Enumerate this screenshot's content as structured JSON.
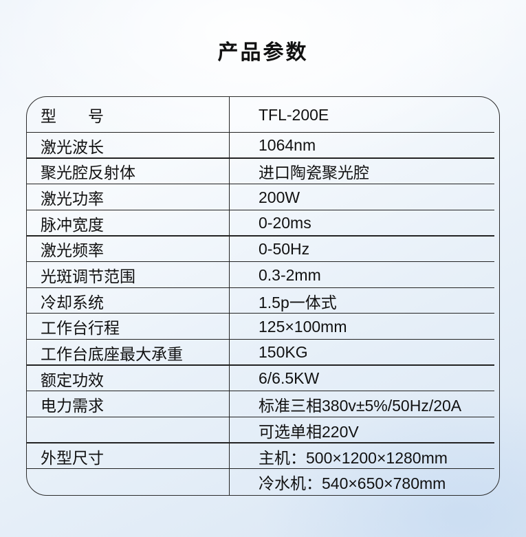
{
  "page": {
    "title": "产品参数"
  },
  "table": {
    "rows": [
      {
        "label": "型　　号",
        "value": "TFL-200E"
      },
      {
        "label": "激光波长",
        "value": "1064nm"
      },
      {
        "label": "聚光腔反射体",
        "value": "进口陶瓷聚光腔"
      },
      {
        "label": "激光功率",
        "value": "200W"
      },
      {
        "label": "脉冲宽度",
        "value": "0-20ms"
      },
      {
        "label": "激光频率",
        "value": "0-50Hz"
      },
      {
        "label": "光斑调节范围",
        "value": "0.3-2mm"
      },
      {
        "label": "冷却系统",
        "value": "1.5p一体式"
      },
      {
        "label": "工作台行程",
        "value": "125×100mm"
      },
      {
        "label": "工作台底座最大承重",
        "value": "150KG"
      },
      {
        "label": "额定功效",
        "value": "6/6.5KW"
      },
      {
        "label": "电力需求",
        "value": "标准三相380v±5%/50Hz/20A"
      },
      {
        "label": "",
        "value": "可选单相220V"
      },
      {
        "label": "外型尺寸",
        "value": "主机：500×1200×1280mm"
      },
      {
        "label": "",
        "value": "冷水机：540×650×780mm"
      }
    ]
  },
  "colors": {
    "line": "#222222",
    "border": "#2b2b2b",
    "text": "#111111",
    "background_top": "#f7fafd",
    "background_bottom": "#d9e6f4"
  }
}
